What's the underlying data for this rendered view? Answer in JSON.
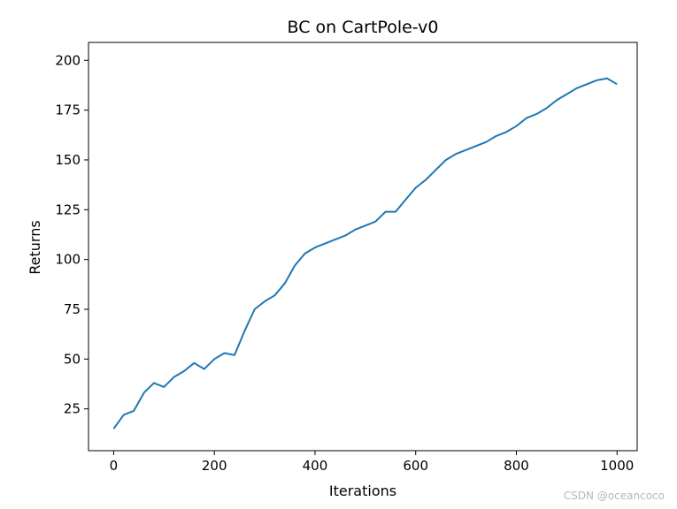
{
  "chart_data": {
    "type": "line",
    "title": "BC on CartPole-v0",
    "xlabel": "Iterations",
    "ylabel": "Returns",
    "xlim": [
      -50,
      1040
    ],
    "ylim": [
      4,
      209
    ],
    "xticks": [
      0,
      200,
      400,
      600,
      800,
      1000
    ],
    "yticks": [
      25,
      50,
      75,
      100,
      125,
      150,
      175,
      200
    ],
    "grid": false,
    "series": [
      {
        "color": "#1f77b4",
        "x": [
          0,
          20,
          40,
          60,
          80,
          100,
          120,
          140,
          160,
          180,
          200,
          220,
          240,
          260,
          280,
          300,
          320,
          340,
          360,
          380,
          400,
          420,
          440,
          460,
          480,
          500,
          520,
          540,
          560,
          580,
          600,
          620,
          640,
          660,
          680,
          700,
          720,
          740,
          760,
          780,
          800,
          820,
          840,
          860,
          880,
          900,
          920,
          940,
          960,
          980,
          1000
        ],
        "y": [
          15,
          22,
          24,
          33,
          38,
          36,
          41,
          44,
          48,
          45,
          50,
          53,
          52,
          64,
          75,
          79,
          82,
          88,
          97,
          103,
          106,
          108,
          110,
          112,
          115,
          117,
          119,
          124,
          124,
          130,
          136,
          140,
          145,
          150,
          153,
          155,
          157,
          159,
          162,
          164,
          167,
          171,
          173,
          176,
          180,
          183,
          186,
          188,
          190,
          191,
          188
        ]
      }
    ]
  },
  "watermark": "CSDN @oceancoco"
}
